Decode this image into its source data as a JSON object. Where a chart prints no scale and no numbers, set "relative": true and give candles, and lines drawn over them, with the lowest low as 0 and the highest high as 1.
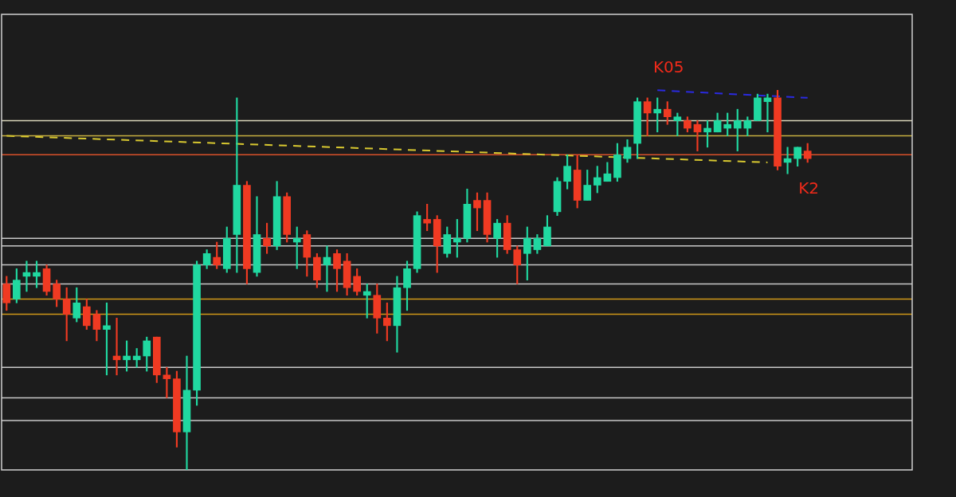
{
  "chart_data": {
    "type": "candlestick",
    "relative": true,
    "legend": false,
    "categories": [
      null,
      null,
      null,
      null,
      null,
      null,
      null,
      null,
      null,
      null,
      null,
      null,
      null,
      null,
      null,
      null,
      null,
      null,
      null,
      null,
      null,
      null,
      null,
      null,
      null,
      null,
      null,
      null,
      null,
      null,
      null,
      null,
      null,
      null,
      null,
      null,
      null,
      null,
      null,
      null,
      null,
      null,
      null,
      null,
      null,
      null,
      null,
      null,
      null,
      null,
      null,
      null,
      null,
      null,
      null,
      null,
      null,
      null,
      null,
      null,
      null,
      null,
      null,
      null,
      null,
      null,
      null,
      null,
      null,
      null,
      null,
      null,
      null,
      null,
      null,
      null,
      null,
      null,
      null,
      null,
      null
    ],
    "ohlc": [
      [
        0.49,
        0.51,
        0.42,
        0.44
      ],
      [
        0.45,
        0.53,
        0.44,
        0.5
      ],
      [
        0.51,
        0.55,
        0.47,
        0.52
      ],
      [
        0.51,
        0.55,
        0.48,
        0.52
      ],
      [
        0.53,
        0.54,
        0.46,
        0.47
      ],
      [
        0.49,
        0.5,
        0.43,
        0.45
      ],
      [
        0.45,
        0.48,
        0.34,
        0.41
      ],
      [
        0.4,
        0.48,
        0.39,
        0.44
      ],
      [
        0.43,
        0.45,
        0.37,
        0.38
      ],
      [
        0.41,
        0.42,
        0.34,
        0.37
      ],
      [
        0.37,
        0.44,
        0.25,
        0.38
      ],
      [
        0.3,
        0.4,
        0.25,
        0.29
      ],
      [
        0.29,
        0.34,
        0.26,
        0.3
      ],
      [
        0.29,
        0.32,
        0.27,
        0.3
      ],
      [
        0.3,
        0.35,
        0.26,
        0.34
      ],
      [
        0.35,
        0.35,
        0.23,
        0.25
      ],
      [
        0.25,
        0.27,
        0.19,
        0.24
      ],
      [
        0.24,
        0.26,
        0.06,
        0.1
      ],
      [
        0.1,
        0.3,
        0,
        0.21
      ],
      [
        0.21,
        0.55,
        0.17,
        0.54
      ],
      [
        0.54,
        0.58,
        0.53,
        0.57
      ],
      [
        0.56,
        0.6,
        0.53,
        0.54
      ],
      [
        0.53,
        0.64,
        0.52,
        0.61
      ],
      [
        0.62,
        0.98,
        0.52,
        0.75
      ],
      [
        0.75,
        0.76,
        0.49,
        0.53
      ],
      [
        0.52,
        0.72,
        0.51,
        0.62
      ],
      [
        0.61,
        0.65,
        0.57,
        0.59
      ],
      [
        0.59,
        0.76,
        0.58,
        0.72
      ],
      [
        0.72,
        0.73,
        0.6,
        0.62
      ],
      [
        0.6,
        0.64,
        0.53,
        0.61
      ],
      [
        0.62,
        0.63,
        0.51,
        0.56
      ],
      [
        0.56,
        0.57,
        0.48,
        0.5
      ],
      [
        0.54,
        0.59,
        0.47,
        0.56
      ],
      [
        0.57,
        0.58,
        0.47,
        0.53
      ],
      [
        0.55,
        0.57,
        0.46,
        0.48
      ],
      [
        0.51,
        0.53,
        0.46,
        0.47
      ],
      [
        0.46,
        0.49,
        0.4,
        0.47
      ],
      [
        0.46,
        0.49,
        0.36,
        0.4
      ],
      [
        0.4,
        0.44,
        0.34,
        0.38
      ],
      [
        0.38,
        0.51,
        0.31,
        0.48
      ],
      [
        0.48,
        0.55,
        0.42,
        0.53
      ],
      [
        0.53,
        0.68,
        0.52,
        0.67
      ],
      [
        0.66,
        0.7,
        0.63,
        0.65
      ],
      [
        0.66,
        0.67,
        0.52,
        0.59
      ],
      [
        0.57,
        0.64,
        0.56,
        0.62
      ],
      [
        0.6,
        0.66,
        0.56,
        0.61
      ],
      [
        0.61,
        0.74,
        0.6,
        0.7
      ],
      [
        0.71,
        0.73,
        0.63,
        0.69
      ],
      [
        0.71,
        0.73,
        0.6,
        0.62
      ],
      [
        0.61,
        0.66,
        0.56,
        0.65
      ],
      [
        0.65,
        0.67,
        0.57,
        0.58
      ],
      [
        0.58,
        0.59,
        0.49,
        0.54
      ],
      [
        0.57,
        0.64,
        0.5,
        0.61
      ],
      [
        0.58,
        0.62,
        0.57,
        0.61
      ],
      [
        0.59,
        0.67,
        0.59,
        0.64
      ],
      [
        0.68,
        0.77,
        0.67,
        0.76
      ],
      [
        0.76,
        0.83,
        0.74,
        0.8
      ],
      [
        0.79,
        0.83,
        0.69,
        0.71
      ],
      [
        0.71,
        0.79,
        0.71,
        0.75
      ],
      [
        0.75,
        0.8,
        0.73,
        0.77
      ],
      [
        0.76,
        0.81,
        0.76,
        0.78
      ],
      [
        0.77,
        0.86,
        0.76,
        0.83
      ],
      [
        0.82,
        0.87,
        0.81,
        0.85
      ],
      [
        0.86,
        0.98,
        0.82,
        0.97
      ],
      [
        0.97,
        0.98,
        0.88,
        0.94
      ],
      [
        0.94,
        0.98,
        0.89,
        0.95
      ],
      [
        0.95,
        0.97,
        0.91,
        0.93
      ],
      [
        0.92,
        0.94,
        0.88,
        0.93
      ],
      [
        0.92,
        0.93,
        0.89,
        0.9
      ],
      [
        0.91,
        0.92,
        0.84,
        0.89
      ],
      [
        0.89,
        0.92,
        0.85,
        0.9
      ],
      [
        0.89,
        0.94,
        0.89,
        0.92
      ],
      [
        0.9,
        0.94,
        0.88,
        0.91
      ],
      [
        0.9,
        0.95,
        0.84,
        0.92
      ],
      [
        0.9,
        0.93,
        0.88,
        0.92
      ],
      [
        0.92,
        0.99,
        0.92,
        0.98
      ],
      [
        0.97,
        0.99,
        0.89,
        0.98
      ],
      [
        0.98,
        1,
        0.79,
        0.8
      ],
      [
        0.81,
        0.85,
        0.78,
        0.82
      ],
      [
        0.82,
        0.85,
        0.8,
        0.85
      ],
      [
        0.84,
        0.86,
        0.81,
        0.82
      ]
    ],
    "colors": [
      "#f03a22",
      "#20d8a0",
      "#20d8a0",
      "#20d8a0",
      "#f03a22",
      "#f03a22",
      "#f03a22",
      "#20d8a0",
      "#f03a22",
      "#f03a22",
      "#20d8a0",
      "#f03a22",
      "#20d8a0",
      "#20d8a0",
      "#20d8a0",
      "#f03a22",
      "#f03a22",
      "#f03a22",
      "#20d8a0",
      "#20d8a0",
      "#20d8a0",
      "#f03a22",
      "#20d8a0",
      "#20d8a0",
      "#f03a22",
      "#20d8a0",
      "#f03a22",
      "#20d8a0",
      "#f03a22",
      "#20d8a0",
      "#f03a22",
      "#f03a22",
      "#20d8a0",
      "#f03a22",
      "#f03a22",
      "#f03a22",
      "#20d8a0",
      "#f03a22",
      "#f03a22",
      "#20d8a0",
      "#20d8a0",
      "#20d8a0",
      "#f03a22",
      "#f03a22",
      "#20d8a0",
      "#20d8a0",
      "#20d8a0",
      "#f03a22",
      "#f03a22",
      "#20d8a0",
      "#f03a22",
      "#f03a22",
      "#20d8a0",
      "#20d8a0",
      "#20d8a0",
      "#20d8a0",
      "#20d8a0",
      "#f03a22",
      "#20d8a0",
      "#20d8a0",
      "#20d8a0",
      "#20d8a0",
      "#20d8a0",
      "#20d8a0",
      "#f03a22",
      "#20d8a0",
      "#f03a22",
      "#20d8a0",
      "#f03a22",
      "#f03a22",
      "#20d8a0",
      "#20d8a0",
      "#20d8a0",
      "#20d8a0",
      "#20d8a0",
      "#20d8a0",
      "#20d8a0",
      "#f03a22",
      "#20d8a0",
      "#20d8a0",
      "#f03a22"
    ],
    "series": [
      {
        "type": "line",
        "color": "#d8c830",
        "line_style": "dashed",
        "marker": "none",
        "values": [
          0.88,
          null,
          null,
          null,
          null,
          null,
          null,
          null,
          null,
          null,
          null,
          null,
          null,
          null,
          null,
          null,
          null,
          null,
          null,
          null,
          null,
          null,
          null,
          null,
          null,
          null,
          null,
          null,
          null,
          null,
          null,
          null,
          null,
          null,
          null,
          null,
          null,
          null,
          null,
          null,
          null,
          null,
          null,
          null,
          null,
          null,
          null,
          null,
          null,
          null,
          null,
          null,
          null,
          null,
          null,
          null,
          null,
          null,
          null,
          null,
          null,
          null,
          null,
          null,
          null,
          null,
          null,
          null,
          null,
          null,
          null,
          null,
          null,
          null,
          null,
          null,
          0.81,
          null,
          null,
          null,
          null
        ]
      },
      {
        "type": "line",
        "color": "#2a2ae0",
        "line_style": "dashed",
        "marker": "none",
        "values": [
          null,
          null,
          null,
          null,
          null,
          null,
          null,
          null,
          null,
          null,
          null,
          null,
          null,
          null,
          null,
          null,
          null,
          null,
          null,
          null,
          null,
          null,
          null,
          null,
          null,
          null,
          null,
          null,
          null,
          null,
          null,
          null,
          null,
          null,
          null,
          null,
          null,
          null,
          null,
          null,
          null,
          null,
          null,
          null,
          null,
          null,
          null,
          null,
          null,
          null,
          null,
          null,
          null,
          null,
          null,
          null,
          null,
          null,
          null,
          null,
          null,
          null,
          null,
          null,
          null,
          1.0,
          null,
          null,
          null,
          null,
          null,
          null,
          null,
          null,
          null,
          null,
          null,
          null,
          null,
          null,
          0.98
        ]
      }
    ],
    "ref_lines": [
      {
        "axis": "y",
        "value": 0.92,
        "color": "#d8d4b8"
      },
      {
        "axis": "y",
        "value": 0.88,
        "color": "#c8b040"
      },
      {
        "axis": "y",
        "value": 0.83,
        "color": "#d8502a"
      },
      {
        "axis": "y",
        "value": 0.61,
        "color": "#c8c8c8"
      },
      {
        "axis": "y",
        "value": 0.59,
        "color": "#c8c8c8"
      },
      {
        "axis": "y",
        "value": 0.54,
        "color": "#c8c8c8"
      },
      {
        "axis": "y",
        "value": 0.49,
        "color": "#c8c8c8"
      },
      {
        "axis": "y",
        "value": 0.45,
        "color": "#d09818"
      },
      {
        "axis": "y",
        "value": 0.41,
        "color": "#d09818"
      },
      {
        "axis": "y",
        "value": 0.27,
        "color": "#c8c8c8"
      },
      {
        "axis": "y",
        "value": 0.19,
        "color": "#c8c8c8"
      },
      {
        "axis": "y",
        "value": 0.13,
        "color": "#c8c8c8"
      }
    ],
    "annotations": [
      "K05",
      "K2"
    ]
  }
}
